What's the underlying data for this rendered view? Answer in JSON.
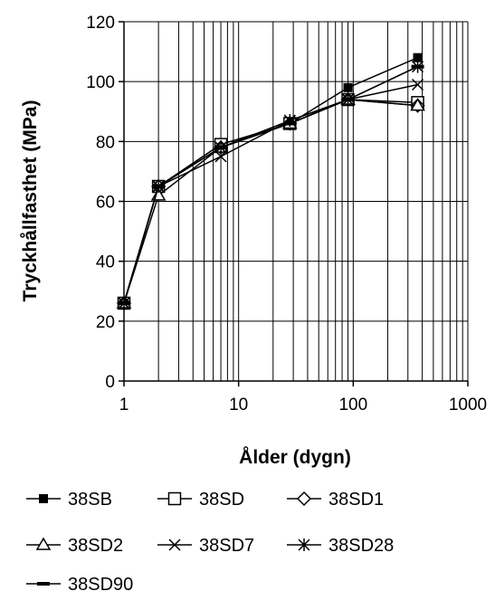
{
  "chart_data": {
    "type": "line",
    "xlabel": "Ålder (dygn)",
    "ylabel": "Tryckhållfasthet (MPa)",
    "xscale": "log",
    "xlim": [
      1,
      1000
    ],
    "ylim": [
      0,
      120
    ],
    "x_ticks": [
      1,
      10,
      100,
      1000
    ],
    "x_tick_labels": [
      "1",
      "10",
      "100",
      "1000"
    ],
    "y_ticks": [
      0,
      20,
      40,
      60,
      80,
      100,
      120
    ],
    "y_tick_labels": [
      "0",
      "20",
      "40",
      "60",
      "80",
      "100",
      "120"
    ],
    "grid": true,
    "legend_position": "bottom",
    "series": [
      {
        "name": "38SB",
        "marker": "filled-square",
        "color": "#000000",
        "x": [
          1,
          2,
          7,
          28,
          90,
          365
        ],
        "y": [
          26,
          65,
          78,
          86,
          98,
          108
        ]
      },
      {
        "name": "38SD",
        "marker": "open-square",
        "color": "#000000",
        "x": [
          1,
          2,
          7,
          28,
          90,
          365
        ],
        "y": [
          26,
          65,
          79,
          86,
          94,
          93
        ]
      },
      {
        "name": "38SD1",
        "marker": "open-diamond",
        "color": "#000000",
        "x": [
          1,
          2,
          7,
          28,
          90,
          365
        ],
        "y": [
          26,
          65,
          78,
          86,
          94,
          92
        ]
      },
      {
        "name": "38SD2",
        "marker": "open-triangle",
        "color": "#000000",
        "x": [
          1,
          2,
          7,
          28,
          90,
          365
        ],
        "y": [
          26,
          62,
          78,
          86,
          94,
          92
        ]
      },
      {
        "name": "38SD7",
        "marker": "x",
        "color": "#000000",
        "x": [
          1,
          2,
          7,
          28,
          90,
          365
        ],
        "y": [
          26,
          65,
          75,
          87,
          94,
          99
        ]
      },
      {
        "name": "38SD28",
        "marker": "star",
        "color": "#000000",
        "x": [
          1,
          2,
          7,
          28,
          90,
          365
        ],
        "y": [
          26,
          65,
          78,
          87,
          94,
          105
        ]
      },
      {
        "name": "38SD90",
        "marker": "dash",
        "color": "#000000",
        "x": [
          1,
          2,
          7,
          28,
          90,
          365
        ],
        "y": [
          26,
          65,
          78,
          86,
          94,
          105
        ]
      }
    ]
  }
}
